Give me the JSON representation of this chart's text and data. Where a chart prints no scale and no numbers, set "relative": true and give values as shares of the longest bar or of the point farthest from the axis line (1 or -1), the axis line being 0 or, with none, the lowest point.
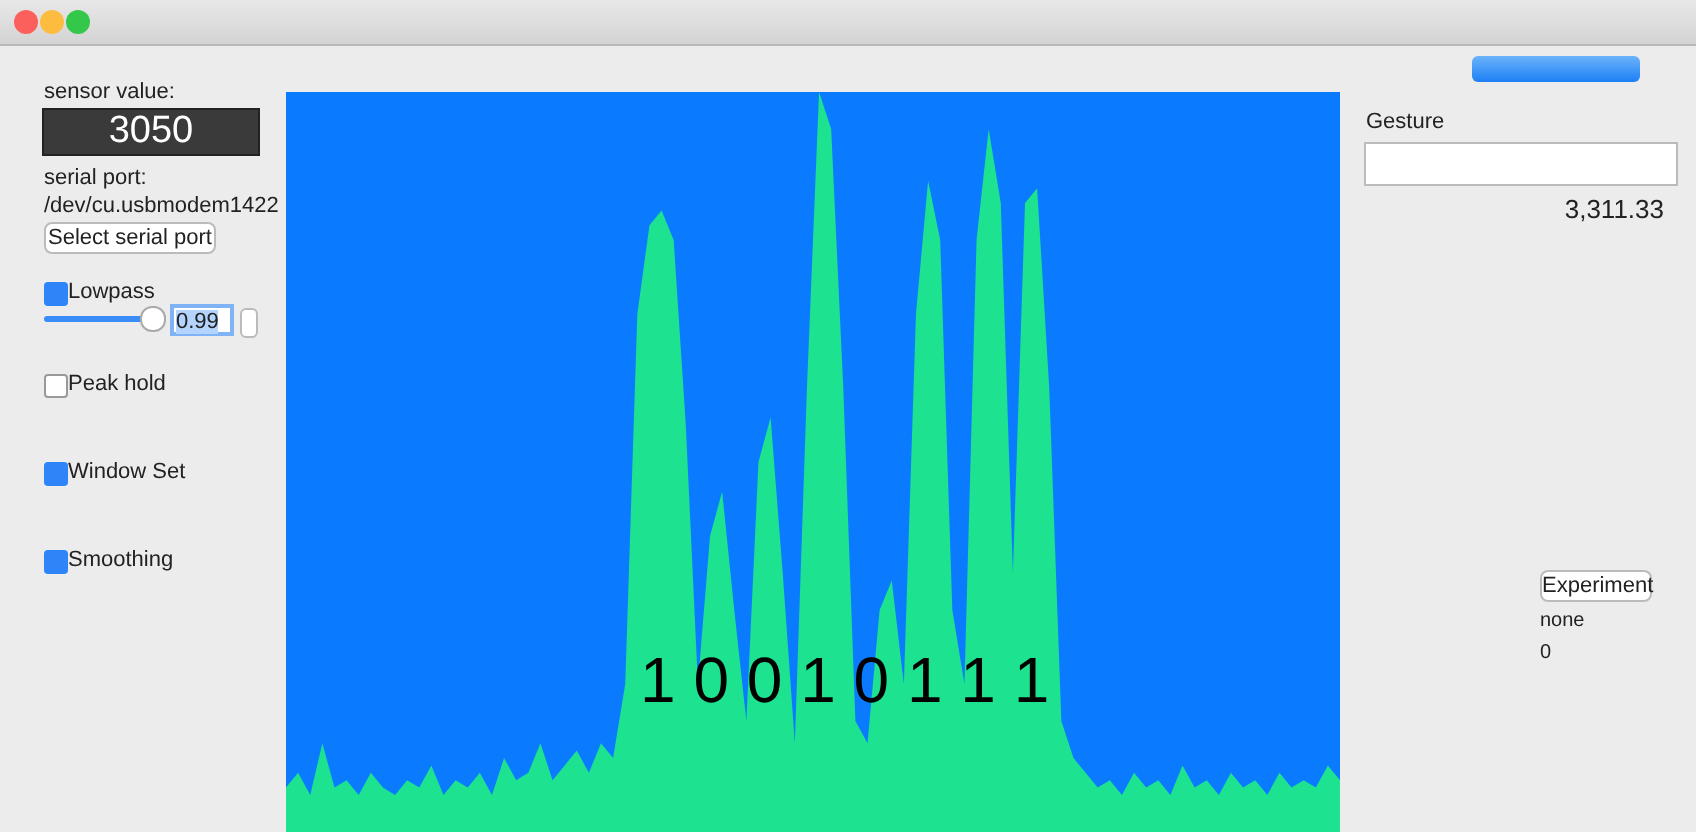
{
  "chart_data": [
    {
      "type": "other",
      "annotations": [
        "sensor value:",
        "3050",
        "serial port:",
        "/dev/cu.usbmodem1422",
        "Select serial port",
        "Lowpass",
        "0.99",
        "Peak hold",
        "Window Set",
        "Smoothing"
      ]
    },
    {
      "type": "area",
      "relative": true,
      "color": "#1de28f",
      "annotations": [
        "1 0 0 1 0 1 1 1"
      ],
      "categories": [
        null,
        null,
        null,
        null,
        null,
        null,
        null,
        null,
        null,
        null,
        null,
        null,
        null,
        null,
        null,
        null,
        null,
        null,
        null,
        null,
        null,
        null,
        null,
        null,
        null,
        null,
        null,
        null,
        null,
        null,
        null,
        null,
        null,
        null,
        null,
        null,
        null,
        null,
        null,
        null,
        null,
        null,
        null,
        null,
        null,
        null,
        null,
        null,
        null,
        null,
        null,
        null,
        null,
        null,
        null,
        null,
        null,
        null,
        null,
        null,
        null,
        null,
        null,
        null,
        null,
        null,
        null,
        null,
        null,
        null,
        null,
        null,
        null,
        null,
        null,
        null,
        null,
        null,
        null,
        null,
        null,
        null,
        null,
        null,
        null,
        null,
        null,
        null
      ],
      "values": [
        0.06,
        0.08,
        0.05,
        0.12,
        0.06,
        0.07,
        0.05,
        0.08,
        0.06,
        0.05,
        0.07,
        0.06,
        0.09,
        0.05,
        0.07,
        0.06,
        0.08,
        0.05,
        0.1,
        0.07,
        0.08,
        0.12,
        0.07,
        0.09,
        0.11,
        0.08,
        0.12,
        0.1,
        0.2,
        0.7,
        0.82,
        0.84,
        0.8,
        0.55,
        0.2,
        0.4,
        0.46,
        0.3,
        0.15,
        0.5,
        0.56,
        0.35,
        0.12,
        0.6,
        1,
        0.95,
        0.6,
        0.15,
        0.12,
        0.3,
        0.34,
        0.2,
        0.7,
        0.88,
        0.8,
        0.3,
        0.2,
        0.8,
        0.95,
        0.85,
        0.35,
        0.85,
        0.87,
        0.6,
        0.15,
        0.1,
        0.08,
        0.06,
        0.07,
        0.05,
        0.08,
        0.06,
        0.07,
        0.05,
        0.09,
        0.06,
        0.07,
        0.05,
        0.08,
        0.06,
        0.07,
        0.05,
        0.08,
        0.06,
        0.07,
        0.06,
        0.09,
        0.07
      ]
    },
    {
      "type": "other",
      "annotations": [
        "Gesture",
        "3,311.33",
        "Experiment",
        "none",
        "0"
      ]
    }
  ]
}
